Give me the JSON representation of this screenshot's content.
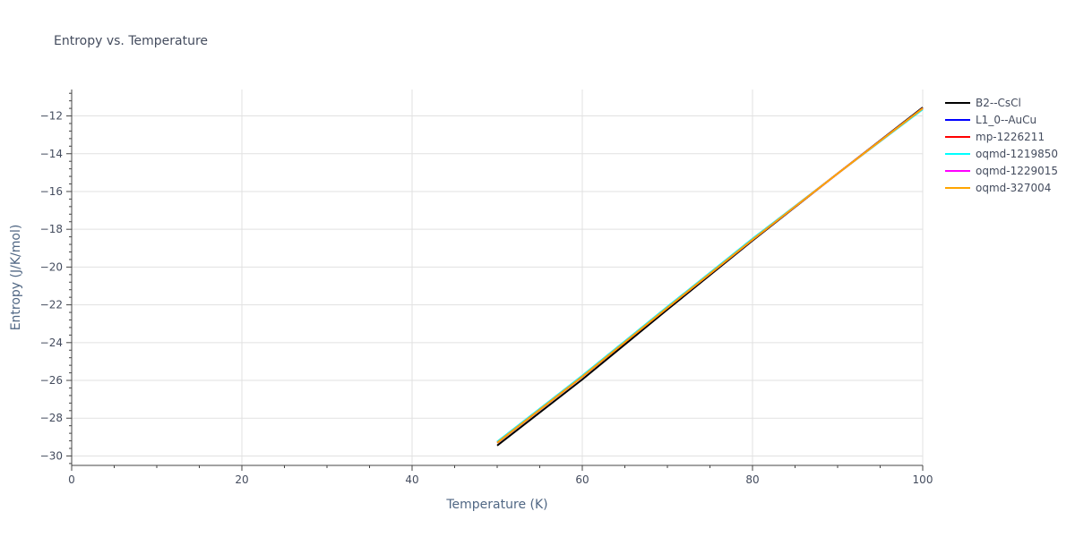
{
  "chart_data": {
    "type": "line",
    "title": "Entropy vs. Temperature",
    "xlabel": "Temperature (K)",
    "ylabel": "Entropy (J/K/mol)",
    "xlim": [
      0,
      100
    ],
    "ylim": [
      -30.5,
      -10.6
    ],
    "x_ticks": [
      0,
      20,
      40,
      60,
      80,
      100
    ],
    "y_ticks": [
      -30,
      -28,
      -26,
      -24,
      -22,
      -20,
      -18,
      -16,
      -14,
      -12
    ],
    "grid": true,
    "legend_position": "right",
    "series": [
      {
        "name": "B2--CsCl",
        "color": "#000000",
        "x": [
          50,
          60,
          70,
          80,
          90,
          100
        ],
        "y": [
          -29.45,
          -25.95,
          -22.25,
          -18.6,
          -15.05,
          -11.55
        ]
      },
      {
        "name": "L1_0--AuCu",
        "color": "#0000ff",
        "x": [
          50,
          60,
          70,
          80,
          90,
          100
        ],
        "y": [
          -29.3,
          -25.8,
          -22.15,
          -18.55,
          -15.05,
          -11.6
        ]
      },
      {
        "name": "mp-1226211",
        "color": "#ff0000",
        "x": [
          50,
          60,
          70,
          80,
          90,
          100
        ],
        "y": [
          -29.3,
          -25.8,
          -22.15,
          -18.55,
          -15.05,
          -11.6
        ]
      },
      {
        "name": "oqmd-1219850",
        "color": "#00ffff",
        "x": [
          50,
          60,
          70,
          80,
          90,
          100
        ],
        "y": [
          -29.25,
          -25.75,
          -22.1,
          -18.5,
          -15.05,
          -11.65
        ]
      },
      {
        "name": "oqmd-1229015",
        "color": "#ff00ff",
        "x": [
          50,
          60,
          70,
          80,
          90,
          100
        ],
        "y": [
          -29.3,
          -25.8,
          -22.15,
          -18.55,
          -15.05,
          -11.6
        ]
      },
      {
        "name": "oqmd-327004",
        "color": "#ffa500",
        "x": [
          50,
          60,
          70,
          80,
          90,
          100
        ],
        "y": [
          -29.3,
          -25.8,
          -22.15,
          -18.55,
          -15.05,
          -11.6
        ]
      }
    ]
  }
}
